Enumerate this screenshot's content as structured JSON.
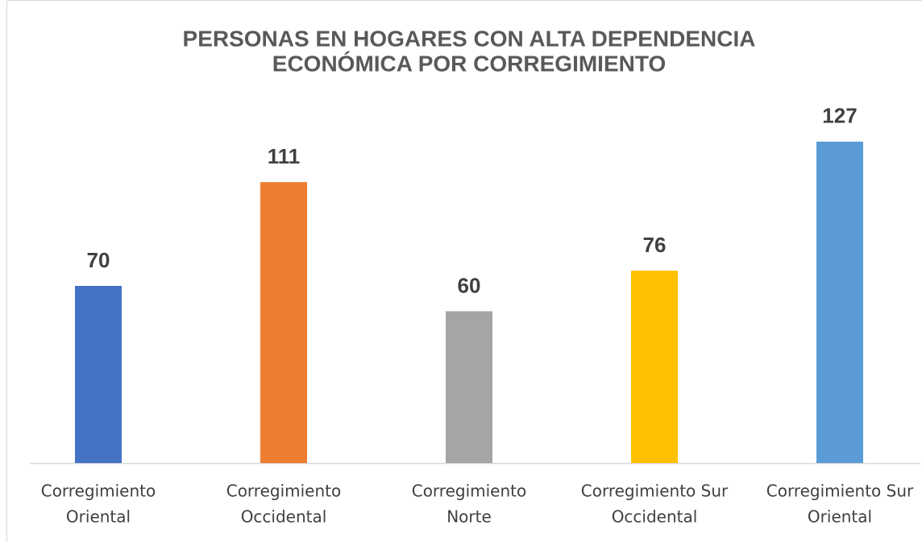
{
  "chart_data": {
    "type": "bar",
    "title": [
      "PERSONAS EN HOGARES CON ALTA DEPENDENCIA",
      "ECONÓMICA POR CORREGIMIENTO"
    ],
    "categories": [
      [
        "Corregimiento",
        "Oriental"
      ],
      [
        "Corregimiento",
        "Occidental"
      ],
      [
        "Corregimiento",
        "Norte"
      ],
      [
        "Corregimiento Sur",
        "Occidental"
      ],
      [
        "Corregimiento Sur",
        "Oriental"
      ]
    ],
    "values": [
      70,
      111,
      60,
      76,
      127
    ],
    "colors": [
      "#4472c4",
      "#ed7d31",
      "#a5a5a5",
      "#ffc000",
      "#5b9bd5"
    ],
    "ylim": [
      0,
      140
    ]
  }
}
